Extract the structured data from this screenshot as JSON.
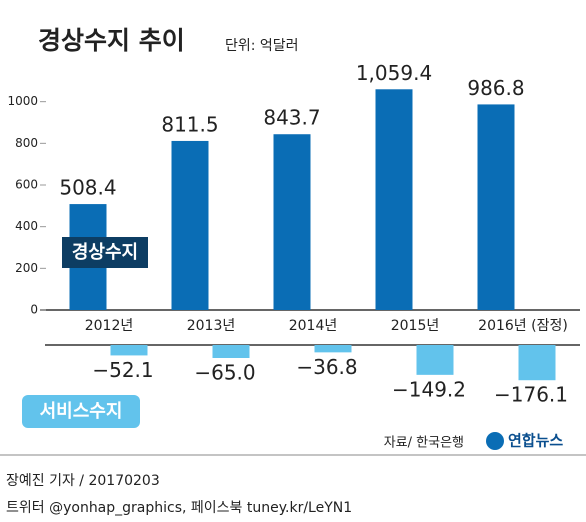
{
  "chart_data": {
    "type": "bar",
    "title": "경상수지 추이",
    "subtitle": "단위: 억달러",
    "categories": [
      "2012년",
      "2013년",
      "2014년",
      "2015년",
      "2016년 (잠정)"
    ],
    "series": [
      {
        "name": "경상수지",
        "color": "#0a6db5",
        "values": [
          508.4,
          811.5,
          843.7,
          1059.4,
          986.8
        ],
        "value_labels": [
          "508.4",
          "811.5",
          "843.7",
          "1,059.4",
          "986.8"
        ]
      },
      {
        "name": "서비스수지",
        "color": "#62c3ec",
        "axis": "y2",
        "values": [
          -52.1,
          -65.0,
          -36.8,
          -149.2,
          -176.1
        ],
        "value_labels": [
          "−52.1",
          "−65.0",
          "−36.8",
          "−149.2",
          "−176.1"
        ]
      }
    ],
    "ylim": [
      0,
      1200
    ],
    "yticks": [
      0,
      200,
      400,
      600,
      800,
      1000
    ],
    "y2lim": [
      -250,
      0
    ],
    "source": "자료/ 한국은행",
    "logo": "연합뉴스",
    "byline": "장예진 기자 / 20170203",
    "social": "트위터 @yonhap_graphics, 페이스북 tuney.kr/LeYN1"
  }
}
